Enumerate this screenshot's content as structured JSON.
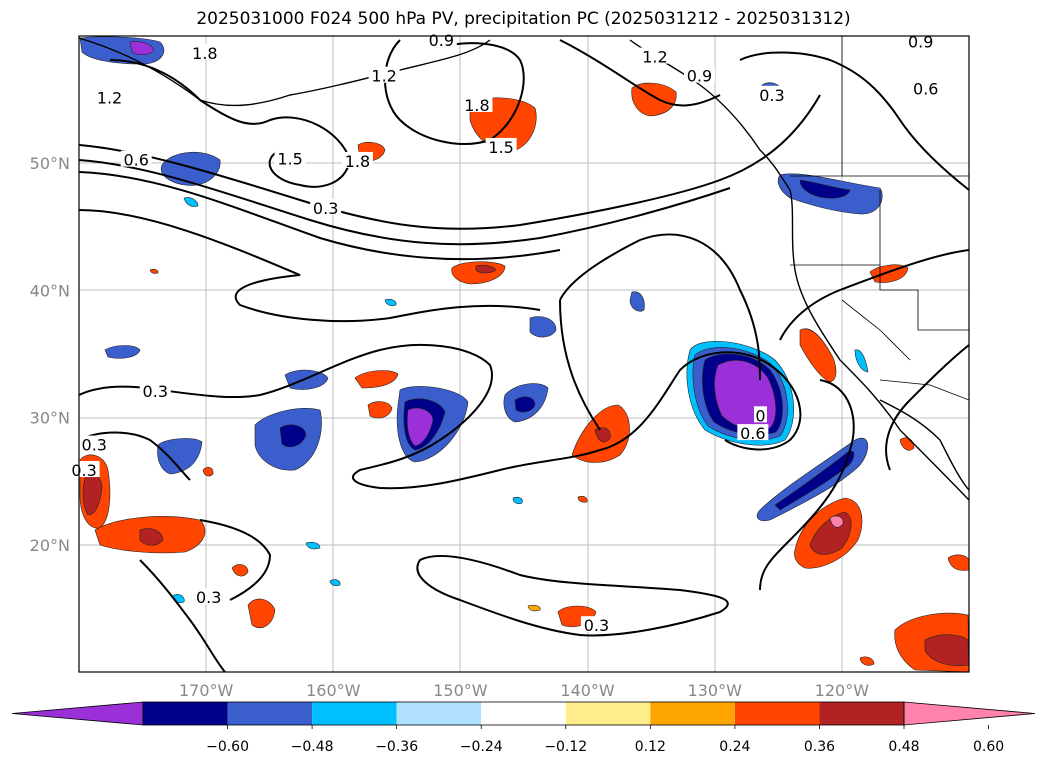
{
  "title": "2025031000 F024 500 hPa PV, precipitation PC (2025031212 - 2025031312)",
  "map": {
    "lon_range": [
      -180,
      -110
    ],
    "lat_range": [
      10,
      60
    ],
    "lon_ticks": [
      {
        "value": -170,
        "label": "170°W"
      },
      {
        "value": -160,
        "label": "160°W"
      },
      {
        "value": -150,
        "label": "150°W"
      },
      {
        "value": -140,
        "label": "140°W"
      },
      {
        "value": -130,
        "label": "130°W"
      },
      {
        "value": -120,
        "label": "120°W"
      }
    ],
    "lat_ticks": [
      {
        "value": 20,
        "label": "20°N"
      },
      {
        "value": 30,
        "label": "30°N"
      },
      {
        "value": 40,
        "label": "40°N"
      },
      {
        "value": 50,
        "label": "50°N"
      }
    ],
    "contour_labels": [
      {
        "text": "1.8",
        "lon": -170.1,
        "lat": 58.6
      },
      {
        "text": "0.9",
        "lon": -151.5,
        "lat": 59.6
      },
      {
        "text": "1.2",
        "lon": -156.0,
        "lat": 56.8
      },
      {
        "text": "1.2",
        "lon": -177.6,
        "lat": 55.1
      },
      {
        "text": "1.5",
        "lon": -163.4,
        "lat": 50.3
      },
      {
        "text": "1.8",
        "lon": -158.1,
        "lat": 50.1
      },
      {
        "text": "0.6",
        "lon": -175.5,
        "lat": 50.2
      },
      {
        "text": "0.3",
        "lon": -160.6,
        "lat": 46.4
      },
      {
        "text": "1.8",
        "lon": -148.7,
        "lat": 54.5
      },
      {
        "text": "1.5",
        "lon": -146.8,
        "lat": 51.2
      },
      {
        "text": "1.2",
        "lon": -134.7,
        "lat": 58.3
      },
      {
        "text": "0.9",
        "lon": -131.2,
        "lat": 56.8
      },
      {
        "text": "0.3",
        "lon": -125.5,
        "lat": 55.3
      },
      {
        "text": "0.9",
        "lon": -113.8,
        "lat": 59.5
      },
      {
        "text": "0.6",
        "lon": -113.4,
        "lat": 55.8
      },
      {
        "text": "0.3",
        "lon": -174.0,
        "lat": 32.0
      },
      {
        "text": "0.3",
        "lon": -178.8,
        "lat": 27.8
      },
      {
        "text": "0.3",
        "lon": -179.6,
        "lat": 25.8
      },
      {
        "text": "0.6",
        "lon": -127.0,
        "lat": 28.7
      },
      {
        "text": "0",
        "lon": -126.4,
        "lat": 30.1
      },
      {
        "text": "0.3",
        "lon": -139.3,
        "lat": 13.6
      },
      {
        "text": "0.3",
        "lon": -169.8,
        "lat": 15.8
      }
    ]
  },
  "colorbar": {
    "colors": [
      "#9b30d9",
      "#00008b",
      "#3a5fcd",
      "#00bfff",
      "#b0e2ff",
      "#ffffff",
      "#ffec8b",
      "#ffa500",
      "#ff4500",
      "#b22222",
      "#ff82ab"
    ],
    "ticks": [
      "−0.60",
      "−0.48",
      "−0.36",
      "−0.24",
      "−0.12",
      "0.12",
      "0.24",
      "0.36",
      "0.48",
      "0.60"
    ]
  }
}
